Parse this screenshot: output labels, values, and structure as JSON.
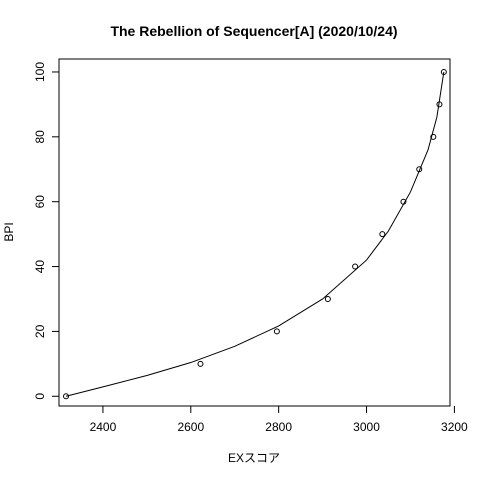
{
  "chart_data": {
    "type": "scatter",
    "title": "The Rebellion of Sequencer[A] (2020/10/24)",
    "xlabel": "EXスコア",
    "ylabel": "BPI",
    "xlim": [
      2300,
      3190
    ],
    "ylim": [
      -3,
      104
    ],
    "x_ticks": [
      2400,
      2600,
      2800,
      3000,
      3200
    ],
    "y_ticks": [
      0,
      20,
      40,
      60,
      80,
      100
    ],
    "grid": false,
    "legend": "none",
    "points": [
      {
        "x": 2316,
        "y": 0
      },
      {
        "x": 2622,
        "y": 10
      },
      {
        "x": 2796,
        "y": 20
      },
      {
        "x": 2912,
        "y": 30
      },
      {
        "x": 2974,
        "y": 40
      },
      {
        "x": 3036,
        "y": 50
      },
      {
        "x": 3084,
        "y": 60
      },
      {
        "x": 3120,
        "y": 70
      },
      {
        "x": 3152,
        "y": 80
      },
      {
        "x": 3166,
        "y": 90
      },
      {
        "x": 3176,
        "y": 100
      }
    ],
    "curve": [
      {
        "x": 2316,
        "y": 0
      },
      {
        "x": 2400,
        "y": 2.9
      },
      {
        "x": 2500,
        "y": 6.4
      },
      {
        "x": 2600,
        "y": 10.4
      },
      {
        "x": 2700,
        "y": 15.4
      },
      {
        "x": 2800,
        "y": 21.7
      },
      {
        "x": 2900,
        "y": 30
      },
      {
        "x": 3000,
        "y": 42
      },
      {
        "x": 3050,
        "y": 51
      },
      {
        "x": 3100,
        "y": 63
      },
      {
        "x": 3140,
        "y": 76
      },
      {
        "x": 3160,
        "y": 86
      },
      {
        "x": 3176,
        "y": 100
      }
    ],
    "colors": {
      "foreground": "#000000",
      "background": "#ffffff"
    }
  }
}
